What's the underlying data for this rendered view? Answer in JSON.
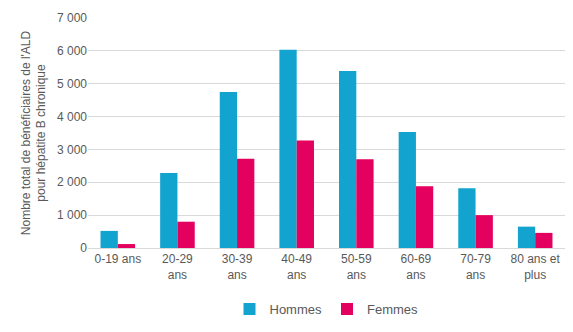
{
  "chart_data": {
    "type": "bar",
    "y_label": "Nombre total de bénéficiaires de l'ALD\npour hépatite B chronique",
    "categories": [
      "0-19 ans",
      "20-29\nans",
      "30-39\nans",
      "40-49\nans",
      "50-59\nans",
      "60-69\nans",
      "70-79\nans",
      "80 ans et\nplus"
    ],
    "series": [
      {
        "name": "Hommes",
        "color": "#12a3cf",
        "values": [
          520,
          2280,
          4750,
          6030,
          5390,
          3530,
          1820,
          650
        ]
      },
      {
        "name": "Femmes",
        "color": "#e3005e",
        "values": [
          120,
          800,
          2720,
          3270,
          2700,
          1880,
          1000,
          460
        ]
      }
    ],
    "ylim": [
      0,
      7000
    ],
    "yticks": [
      0,
      {
        "value": 1000,
        "label": "1 000"
      },
      {
        "value": 2000,
        "label": "2 000"
      },
      {
        "value": 3000,
        "label": "3 000"
      },
      {
        "value": 4000,
        "label": "4 000"
      },
      {
        "value": 5000,
        "label": "5 000"
      },
      {
        "value": 6000,
        "label": "6 000"
      },
      {
        "value": 7000,
        "label": "7 000"
      }
    ],
    "grid": true,
    "legend": "bottom"
  }
}
